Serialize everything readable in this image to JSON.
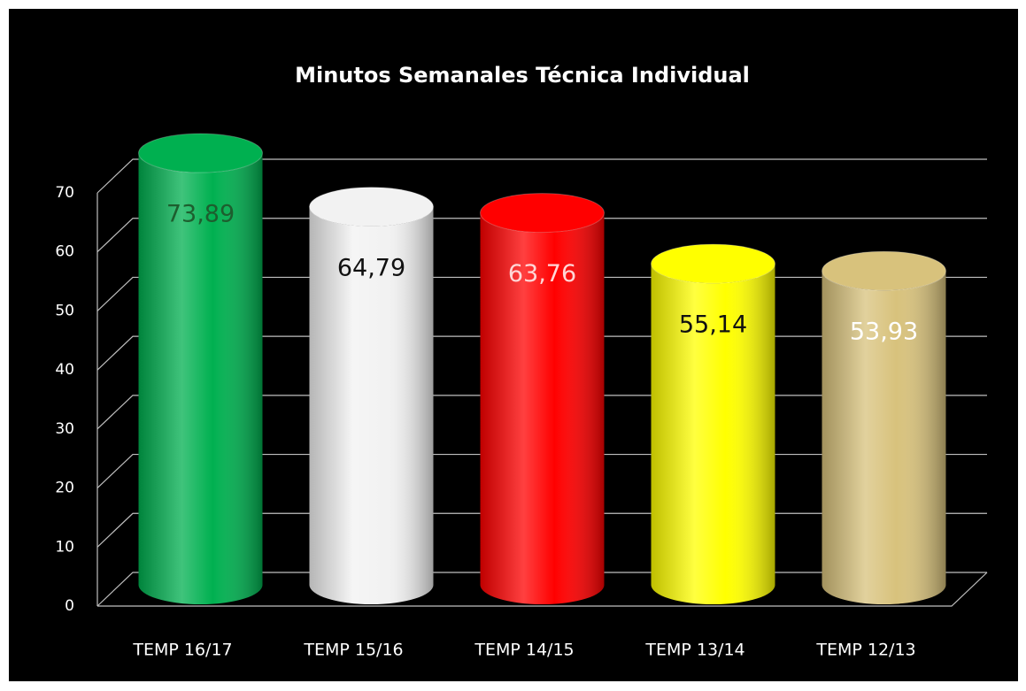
{
  "chart_data": {
    "type": "cylinder-bar",
    "title": "Minutos  Semanales Técnica Individual",
    "categories": [
      "TEMP  16/17",
      "TEMP  15/16",
      "TEMP  14/15",
      "TEMP  13/14",
      "TEMP  12/13"
    ],
    "values": [
      73.89,
      64.79,
      63.76,
      55.14,
      53.93
    ],
    "value_labels": [
      "73,89",
      "64,79",
      "63,76",
      "55,14",
      "53,93"
    ],
    "colors": [
      "#00b050",
      "#f2f2f2",
      "#ff0000",
      "#ffff00",
      "#d8c27c"
    ],
    "label_colors": [
      "#1d5e2e",
      "#111111",
      "#ffd6d6",
      "#111111",
      "#ffffff"
    ],
    "ylim": [
      0,
      70
    ],
    "yticks": [
      0,
      10,
      20,
      30,
      40,
      50,
      60,
      70
    ],
    "grid": true
  }
}
